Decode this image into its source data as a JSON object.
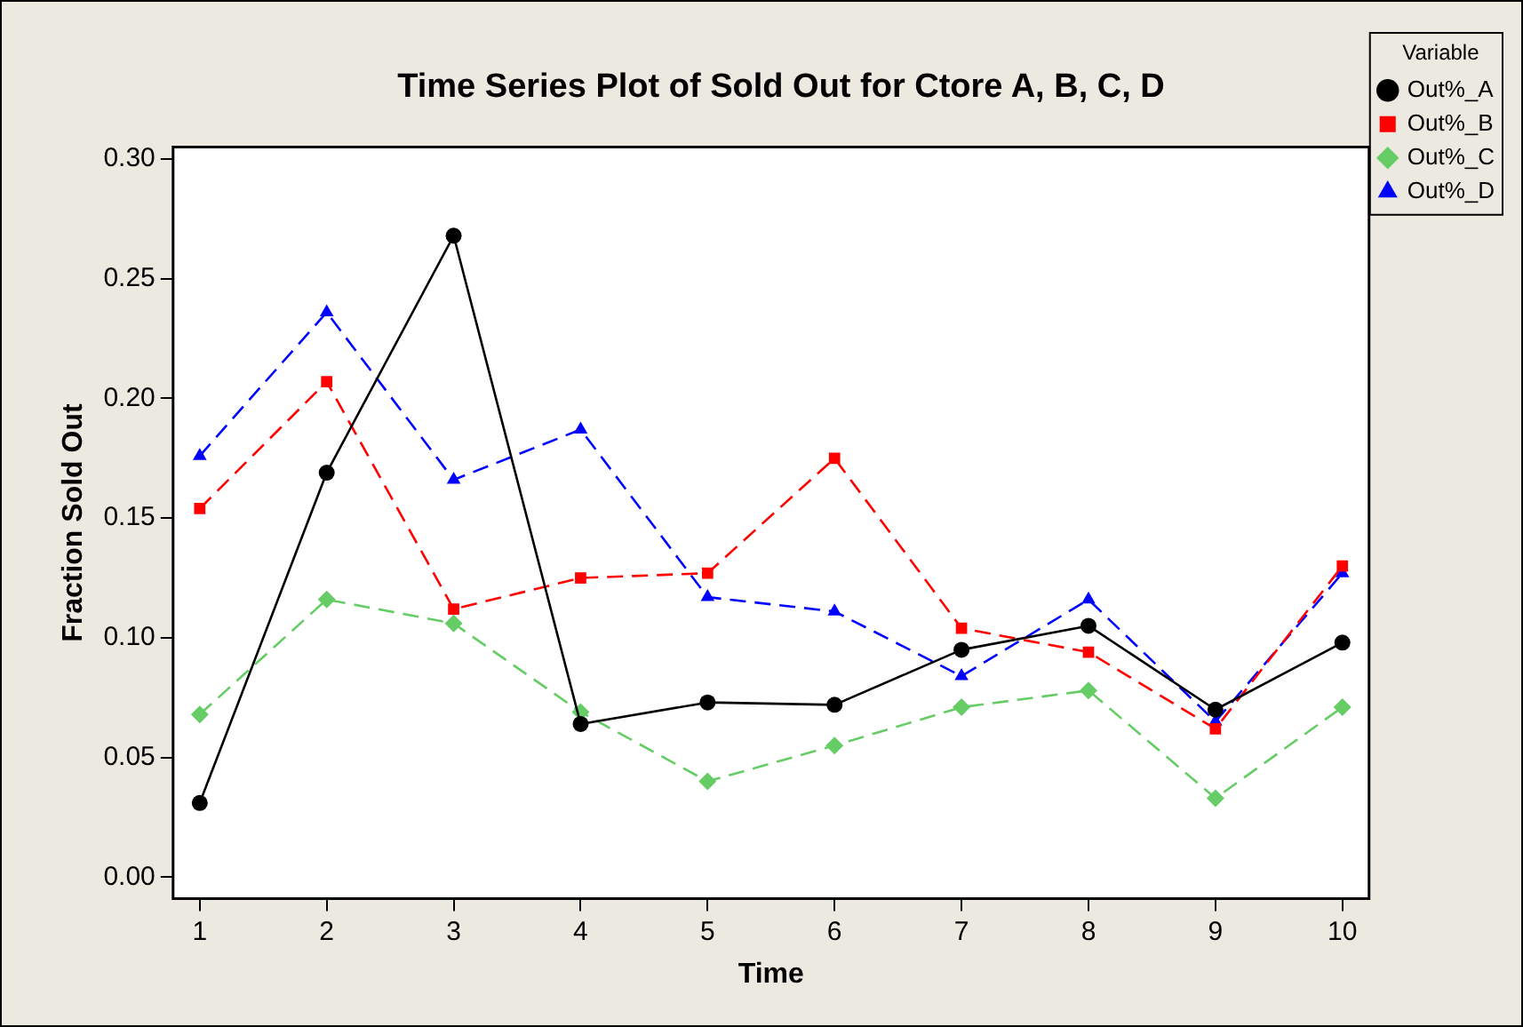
{
  "chart_data": {
    "type": "line",
    "title": "Time Series Plot of Sold Out for Ctore A, B, C, D",
    "xlabel": "Time",
    "ylabel": "Fraction Sold Out",
    "legend_title": "Variable",
    "x": [
      1,
      2,
      3,
      4,
      5,
      6,
      7,
      8,
      9,
      10
    ],
    "series": [
      {
        "name": "Out%_A",
        "color": "#000000",
        "marker": "circle",
        "line_style": "solid",
        "values": [
          0.031,
          0.169,
          0.268,
          0.064,
          0.073,
          0.072,
          0.095,
          0.105,
          0.07,
          0.098
        ]
      },
      {
        "name": "Out%_B",
        "color": "#ff0000",
        "marker": "square",
        "line_style": "dashed",
        "values": [
          0.154,
          0.207,
          0.112,
          0.125,
          0.127,
          0.175,
          0.104,
          0.094,
          0.062,
          0.13
        ]
      },
      {
        "name": "Out%_C",
        "color": "#66cc66",
        "marker": "diamond",
        "line_style": "dashed",
        "values": [
          0.068,
          0.116,
          0.106,
          0.069,
          0.04,
          0.055,
          0.071,
          0.078,
          0.033,
          0.071
        ]
      },
      {
        "name": "Out%_D",
        "color": "#0000ff",
        "marker": "triangle",
        "line_style": "dashed",
        "values": [
          0.176,
          0.236,
          0.166,
          0.187,
          0.117,
          0.111,
          0.084,
          0.116,
          0.065,
          0.127
        ]
      }
    ],
    "xlim": [
      0.79,
      10.21
    ],
    "xticks": [
      1,
      2,
      3,
      4,
      5,
      6,
      7,
      8,
      9,
      10
    ],
    "ylim": [
      -0.009,
      0.305
    ],
    "yticks": [
      {
        "value": 0,
        "label": "0.00"
      },
      {
        "value": 0.05,
        "label": "0.05"
      },
      {
        "value": 0.1,
        "label": "0.10"
      },
      {
        "value": 0.15,
        "label": "0.15"
      },
      {
        "value": 0.2,
        "label": "0.20"
      },
      {
        "value": 0.25,
        "label": "0.25"
      },
      {
        "value": 0.3,
        "label": "0.30"
      }
    ],
    "grid": false,
    "legend": "top right"
  }
}
